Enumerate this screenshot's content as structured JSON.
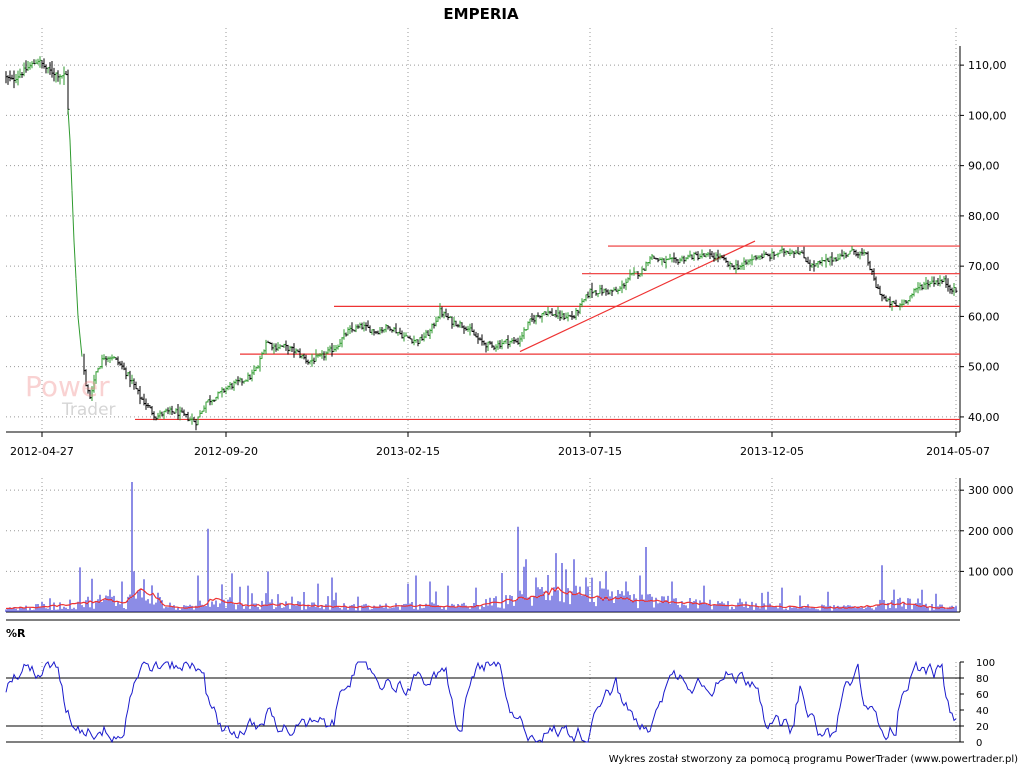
{
  "chart_data": [
    {
      "type": "candlestick",
      "title": "EMPERIA",
      "x_ticks": [
        "2012-04-27",
        "2012-09-20",
        "2013-02-15",
        "2013-07-15",
        "2013-12-05",
        "2014-05-07"
      ],
      "y_ticks": [
        "110,00",
        "100,00",
        "90,00",
        "80,00",
        "70,00",
        "60,00",
        "50,00",
        "40,00"
      ],
      "y_tick_values": [
        110,
        100,
        90,
        80,
        70,
        60,
        50,
        40
      ],
      "ylim": [
        37,
        115
      ],
      "grid": true,
      "close_series_anchors": [
        [
          0,
          108
        ],
        [
          12,
          107
        ],
        [
          25,
          109
        ],
        [
          38,
          111
        ],
        [
          48,
          109
        ],
        [
          60,
          108
        ],
        [
          66,
          108
        ],
        [
          70,
          95
        ],
        [
          74,
          75
        ],
        [
          78,
          60
        ],
        [
          82,
          52
        ],
        [
          86,
          46
        ],
        [
          90,
          44
        ],
        [
          96,
          49
        ],
        [
          104,
          52
        ],
        [
          112,
          52
        ],
        [
          122,
          50
        ],
        [
          132,
          47
        ],
        [
          140,
          44
        ],
        [
          148,
          42
        ],
        [
          156,
          40
        ],
        [
          166,
          41
        ],
        [
          176,
          41
        ],
        [
          186,
          40
        ],
        [
          196,
          39
        ],
        [
          206,
          43
        ],
        [
          216,
          44
        ],
        [
          228,
          46
        ],
        [
          240,
          47
        ],
        [
          250,
          48
        ],
        [
          258,
          50
        ],
        [
          266,
          55
        ],
        [
          274,
          54
        ],
        [
          284,
          54
        ],
        [
          296,
          53
        ],
        [
          308,
          51
        ],
        [
          322,
          52
        ],
        [
          336,
          54
        ],
        [
          348,
          57
        ],
        [
          362,
          58
        ],
        [
          376,
          57
        ],
        [
          390,
          58
        ],
        [
          404,
          56
        ],
        [
          418,
          55
        ],
        [
          430,
          57
        ],
        [
          440,
          61
        ],
        [
          452,
          59
        ],
        [
          466,
          58
        ],
        [
          480,
          55
        ],
        [
          492,
          54
        ],
        [
          506,
          55
        ],
        [
          518,
          55
        ],
        [
          530,
          59
        ],
        [
          544,
          61
        ],
        [
          560,
          60
        ],
        [
          574,
          60
        ],
        [
          590,
          65
        ],
        [
          604,
          65
        ],
        [
          618,
          65
        ],
        [
          630,
          68
        ],
        [
          642,
          69
        ],
        [
          650,
          72
        ],
        [
          662,
          71
        ],
        [
          676,
          71
        ],
        [
          690,
          72
        ],
        [
          704,
          72
        ],
        [
          718,
          72
        ],
        [
          730,
          70
        ],
        [
          742,
          70
        ],
        [
          756,
          72
        ],
        [
          770,
          72
        ],
        [
          784,
          73
        ],
        [
          798,
          73
        ],
        [
          812,
          70
        ],
        [
          826,
          71
        ],
        [
          840,
          72
        ],
        [
          854,
          73
        ],
        [
          866,
          72
        ],
        [
          876,
          66
        ],
        [
          886,
          63
        ],
        [
          898,
          62
        ],
        [
          910,
          64
        ],
        [
          920,
          66
        ],
        [
          932,
          67
        ],
        [
          944,
          67
        ],
        [
          955,
          65
        ]
      ],
      "horizontal_levels": [
        {
          "y": 74,
          "from_x": 608,
          "to_x": 960
        },
        {
          "y": 68.5,
          "from_x": 582,
          "to_x": 960
        },
        {
          "y": 62,
          "from_x": 334,
          "to_x": 960
        },
        {
          "y": 52.5,
          "from_x": 240,
          "to_x": 960
        },
        {
          "y": 39.5,
          "from_x": 135,
          "to_x": 960
        }
      ],
      "trendline": {
        "from_x": 520,
        "from_y": 53,
        "to_x": 755,
        "to_y": 75
      },
      "up_color": "#2e9a2e",
      "down_color": "#000000",
      "level_color": "#ee3333"
    },
    {
      "type": "bar",
      "name": "volume",
      "y_ticks": [
        "300 000",
        "200 000",
        "100 000"
      ],
      "y_tick_values": [
        300000,
        200000,
        100000
      ],
      "ylim": [
        0,
        330000
      ],
      "spikes": [
        [
          80,
          110000
        ],
        [
          95,
          125000
        ],
        [
          110,
          55000
        ],
        [
          122,
          75000
        ],
        [
          132,
          320000
        ],
        [
          134,
          100000
        ],
        [
          157,
          150000
        ],
        [
          198,
          90000
        ],
        [
          208,
          205000
        ],
        [
          232,
          95000
        ],
        [
          248,
          65000
        ],
        [
          268,
          100000
        ],
        [
          318,
          70000
        ],
        [
          332,
          85000
        ],
        [
          408,
          70000
        ],
        [
          416,
          90000
        ],
        [
          430,
          75000
        ],
        [
          448,
          65000
        ],
        [
          476,
          60000
        ],
        [
          518,
          210000
        ],
        [
          526,
          130000
        ],
        [
          536,
          85000
        ],
        [
          556,
          145000
        ],
        [
          566,
          105000
        ],
        [
          574,
          130000
        ],
        [
          586,
          85000
        ],
        [
          606,
          100000
        ],
        [
          626,
          75000
        ],
        [
          640,
          90000
        ],
        [
          646,
          160000
        ],
        [
          672,
          75000
        ],
        [
          704,
          65000
        ],
        [
          782,
          60000
        ],
        [
          828,
          50000
        ],
        [
          882,
          115000
        ],
        [
          894,
          55000
        ],
        [
          936,
          45000
        ]
      ],
      "volume_ma_anchors": [
        [
          0,
          8000
        ],
        [
          40,
          12000
        ],
        [
          70,
          18000
        ],
        [
          90,
          25000
        ],
        [
          110,
          30000
        ],
        [
          125,
          20000
        ],
        [
          140,
          55000
        ],
        [
          152,
          45000
        ],
        [
          165,
          15000
        ],
        [
          185,
          10000
        ],
        [
          200,
          12000
        ],
        [
          215,
          35000
        ],
        [
          230,
          25000
        ],
        [
          250,
          15000
        ],
        [
          280,
          20000
        ],
        [
          320,
          15000
        ],
        [
          360,
          12000
        ],
        [
          420,
          15000
        ],
        [
          470,
          12000
        ],
        [
          510,
          30000
        ],
        [
          530,
          35000
        ],
        [
          545,
          48000
        ],
        [
          560,
          55000
        ],
        [
          575,
          45000
        ],
        [
          600,
          35000
        ],
        [
          630,
          30000
        ],
        [
          660,
          25000
        ],
        [
          700,
          20000
        ],
        [
          750,
          15000
        ],
        [
          800,
          12000
        ],
        [
          850,
          10000
        ],
        [
          880,
          18000
        ],
        [
          905,
          22000
        ],
        [
          930,
          12000
        ],
        [
          955,
          10000
        ]
      ],
      "bar_color": "#1a1acc",
      "ma_color": "#ee3333"
    },
    {
      "type": "line",
      "name": "%R",
      "y_ticks": [
        "100",
        "80",
        "60",
        "40",
        "20",
        "0"
      ],
      "y_tick_values": [
        100,
        80,
        60,
        40,
        20,
        0
      ],
      "ylim": [
        0,
        100
      ],
      "reference_lines": [
        80,
        20
      ],
      "line_color": "#1a1acc"
    }
  ],
  "labels": {
    "oscillator": "%R",
    "footer": "Wykres został stworzony za pomocą programu PowerTrader (www.powertrader.pl)",
    "watermark_power": "Power",
    "watermark_trader": "Trader"
  }
}
